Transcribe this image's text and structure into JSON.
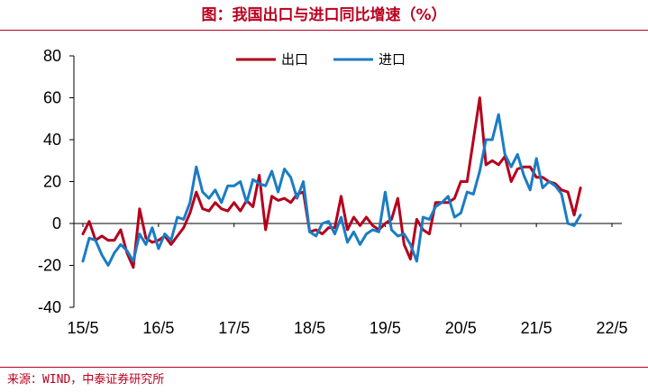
{
  "title": "图：我国出口与进口同比增速（%）",
  "source": "来源：WIND，中泰证券研究所",
  "colors": {
    "accent": "#b8001f",
    "export": "#b5001c",
    "import": "#1a7cc4"
  },
  "chart_data": {
    "type": "line",
    "legend_position": "top-center",
    "grid": false,
    "ylim": [
      -40,
      80
    ],
    "y_ticks": [
      "80",
      "60",
      "40",
      "20",
      "0",
      "-20",
      "-40"
    ],
    "x_tick_labels": [
      "15/5",
      "16/5",
      "17/5",
      "18/5",
      "19/5",
      "20/5",
      "21/5",
      "22/5"
    ],
    "xlim": [
      0,
      85
    ],
    "series": [
      {
        "name": "出口",
        "color": "#b5001c",
        "x": [
          0,
          1,
          2,
          3,
          4,
          5,
          6,
          7,
          8,
          9,
          10,
          11,
          12,
          13,
          14,
          15,
          16,
          17,
          18,
          19,
          20,
          21,
          22,
          23,
          24,
          25,
          26,
          27,
          28,
          29,
          30,
          31,
          32,
          33,
          34,
          35,
          36,
          37,
          38,
          39,
          40,
          41,
          42,
          43,
          44,
          45,
          46,
          47,
          48,
          49,
          50,
          51,
          52,
          53,
          54,
          55,
          56,
          57,
          58,
          59,
          60,
          61,
          62,
          63,
          64,
          65,
          66,
          67,
          68,
          69,
          70,
          71,
          72,
          73,
          74,
          75,
          76,
          77,
          78,
          79,
          80,
          81,
          82,
          83,
          84
        ],
        "values": [
          -5,
          1,
          -8,
          -6,
          -8,
          -8,
          -3,
          -14,
          -21,
          7,
          -7,
          -9,
          -8,
          -6,
          -10,
          -6,
          -2,
          5,
          15,
          7,
          6,
          10,
          7,
          6,
          10,
          6,
          11,
          8,
          23,
          -3,
          13,
          11,
          12,
          10,
          14,
          15,
          -4,
          -3,
          -5,
          -2,
          -2,
          13,
          -3,
          3,
          -1,
          3,
          -1,
          -3,
          0,
          2,
          12,
          -10,
          -17,
          2,
          -3,
          -5,
          10,
          10,
          10,
          12,
          20,
          20,
          40,
          60,
          28,
          30,
          28,
          32,
          20,
          26,
          27,
          27,
          22,
          22,
          20,
          19,
          16,
          15,
          4,
          17,
          null,
          null,
          null,
          null,
          null
        ],
        "values_note": ""
      },
      {
        "name": "进口",
        "color": "#1a7cc4",
        "x": [
          0,
          1,
          2,
          3,
          4,
          5,
          6,
          7,
          8,
          9,
          10,
          11,
          12,
          13,
          14,
          15,
          16,
          17,
          18,
          19,
          20,
          21,
          22,
          23,
          24,
          25,
          26,
          27,
          28,
          29,
          30,
          31,
          32,
          33,
          34,
          35,
          36,
          37,
          38,
          39,
          40,
          41,
          42,
          43,
          44,
          45,
          46,
          47,
          48,
          49,
          50,
          51,
          52,
          53,
          54,
          55,
          56,
          57,
          58,
          59,
          60,
          61,
          62,
          63,
          64,
          65,
          66,
          67,
          68,
          69,
          70,
          71,
          72,
          73,
          74,
          75,
          76,
          77,
          78,
          79
        ],
        "values": [
          -18,
          -7,
          -8,
          -15,
          -20,
          -14,
          -10,
          -13,
          -18,
          -5,
          -10,
          -2,
          -12,
          -5,
          -8,
          3,
          2,
          10,
          27,
          15,
          12,
          16,
          10,
          18,
          18,
          20,
          10,
          21,
          19,
          18,
          25,
          15,
          26,
          22,
          12,
          20,
          -4,
          -6,
          0,
          1,
          -5,
          3,
          -9,
          -4,
          -10,
          -5,
          -3,
          -4,
          15,
          -3,
          -6,
          -5,
          -10,
          -18,
          3,
          2,
          8,
          10,
          13,
          3,
          5,
          15,
          14,
          25,
          40,
          40,
          52,
          33,
          27,
          33,
          23,
          16,
          31,
          17,
          20,
          18,
          14,
          0,
          -1,
          4
        ],
        "values_note": ""
      }
    ]
  }
}
